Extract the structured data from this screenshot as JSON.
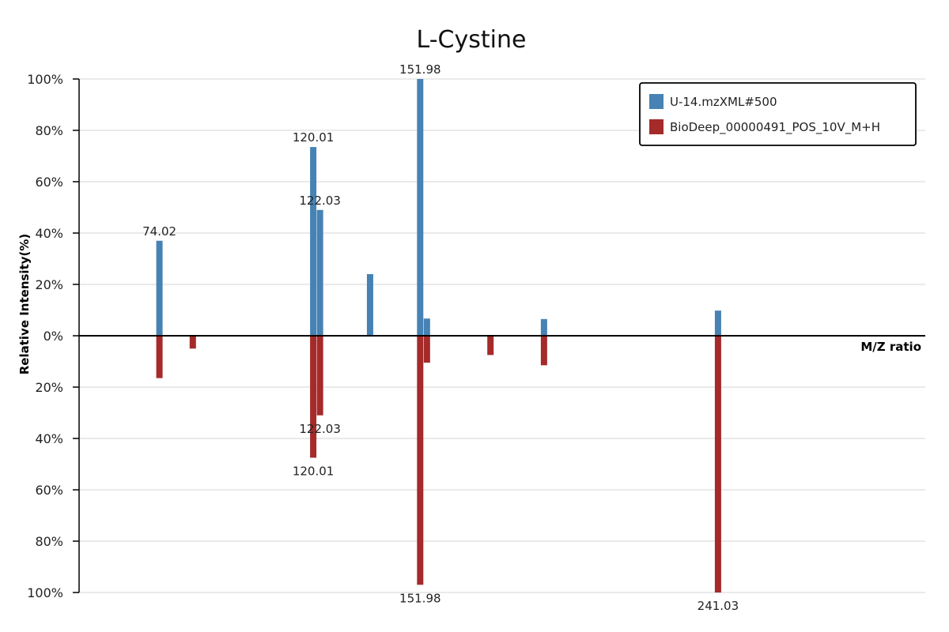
{
  "chart_data": {
    "type": "bar",
    "title": "L-Cystine",
    "xlabel": "M/Z ratio",
    "ylabel": "Relative Intensity(%)",
    "xlim": [
      50,
      303
    ],
    "ylim": [
      -100,
      100
    ],
    "y_ticks": [
      {
        "value": 100,
        "label": "100%"
      },
      {
        "value": 80,
        "label": "80%"
      },
      {
        "value": 60,
        "label": "60%"
      },
      {
        "value": 40,
        "label": "40%"
      },
      {
        "value": 20,
        "label": "20%"
      },
      {
        "value": 0,
        "label": "0%"
      },
      {
        "value": -20,
        "label": "20%"
      },
      {
        "value": -40,
        "label": "40%"
      },
      {
        "value": -60,
        "label": "60%"
      },
      {
        "value": -80,
        "label": "80%"
      },
      {
        "value": -100,
        "label": "100%"
      }
    ],
    "grid": true,
    "legend_position": "top-right",
    "series": [
      {
        "name": "U-14.mzXML#500",
        "color": "#4682b4",
        "direction": "up",
        "peaks": [
          {
            "mz": 74.02,
            "intensity": 37,
            "label": "74.02"
          },
          {
            "mz": 120.01,
            "intensity": 73.5,
            "label": "120.01"
          },
          {
            "mz": 122.03,
            "intensity": 49,
            "label": "122.03"
          },
          {
            "mz": 137.0,
            "intensity": 24,
            "label": ""
          },
          {
            "mz": 151.98,
            "intensity": 100,
            "label": "151.98"
          },
          {
            "mz": 154.0,
            "intensity": 6.7,
            "label": ""
          },
          {
            "mz": 189.0,
            "intensity": 6.5,
            "label": ""
          },
          {
            "mz": 241.03,
            "intensity": 9.8,
            "label": ""
          }
        ]
      },
      {
        "name": "BioDeep_00000491_POS_10V_M+H",
        "color": "#a52a2a",
        "direction": "down",
        "peaks": [
          {
            "mz": 74.02,
            "intensity": 16.5,
            "label": ""
          },
          {
            "mz": 84.0,
            "intensity": 5,
            "label": ""
          },
          {
            "mz": 120.01,
            "intensity": 47.5,
            "label": "120.01"
          },
          {
            "mz": 122.03,
            "intensity": 31,
            "label": "122.03"
          },
          {
            "mz": 151.98,
            "intensity": 97,
            "label": "151.98"
          },
          {
            "mz": 154.0,
            "intensity": 10.5,
            "label": ""
          },
          {
            "mz": 173.0,
            "intensity": 7.5,
            "label": ""
          },
          {
            "mz": 189.0,
            "intensity": 11.5,
            "label": ""
          },
          {
            "mz": 241.03,
            "intensity": 100,
            "label": "241.03"
          }
        ]
      }
    ]
  }
}
